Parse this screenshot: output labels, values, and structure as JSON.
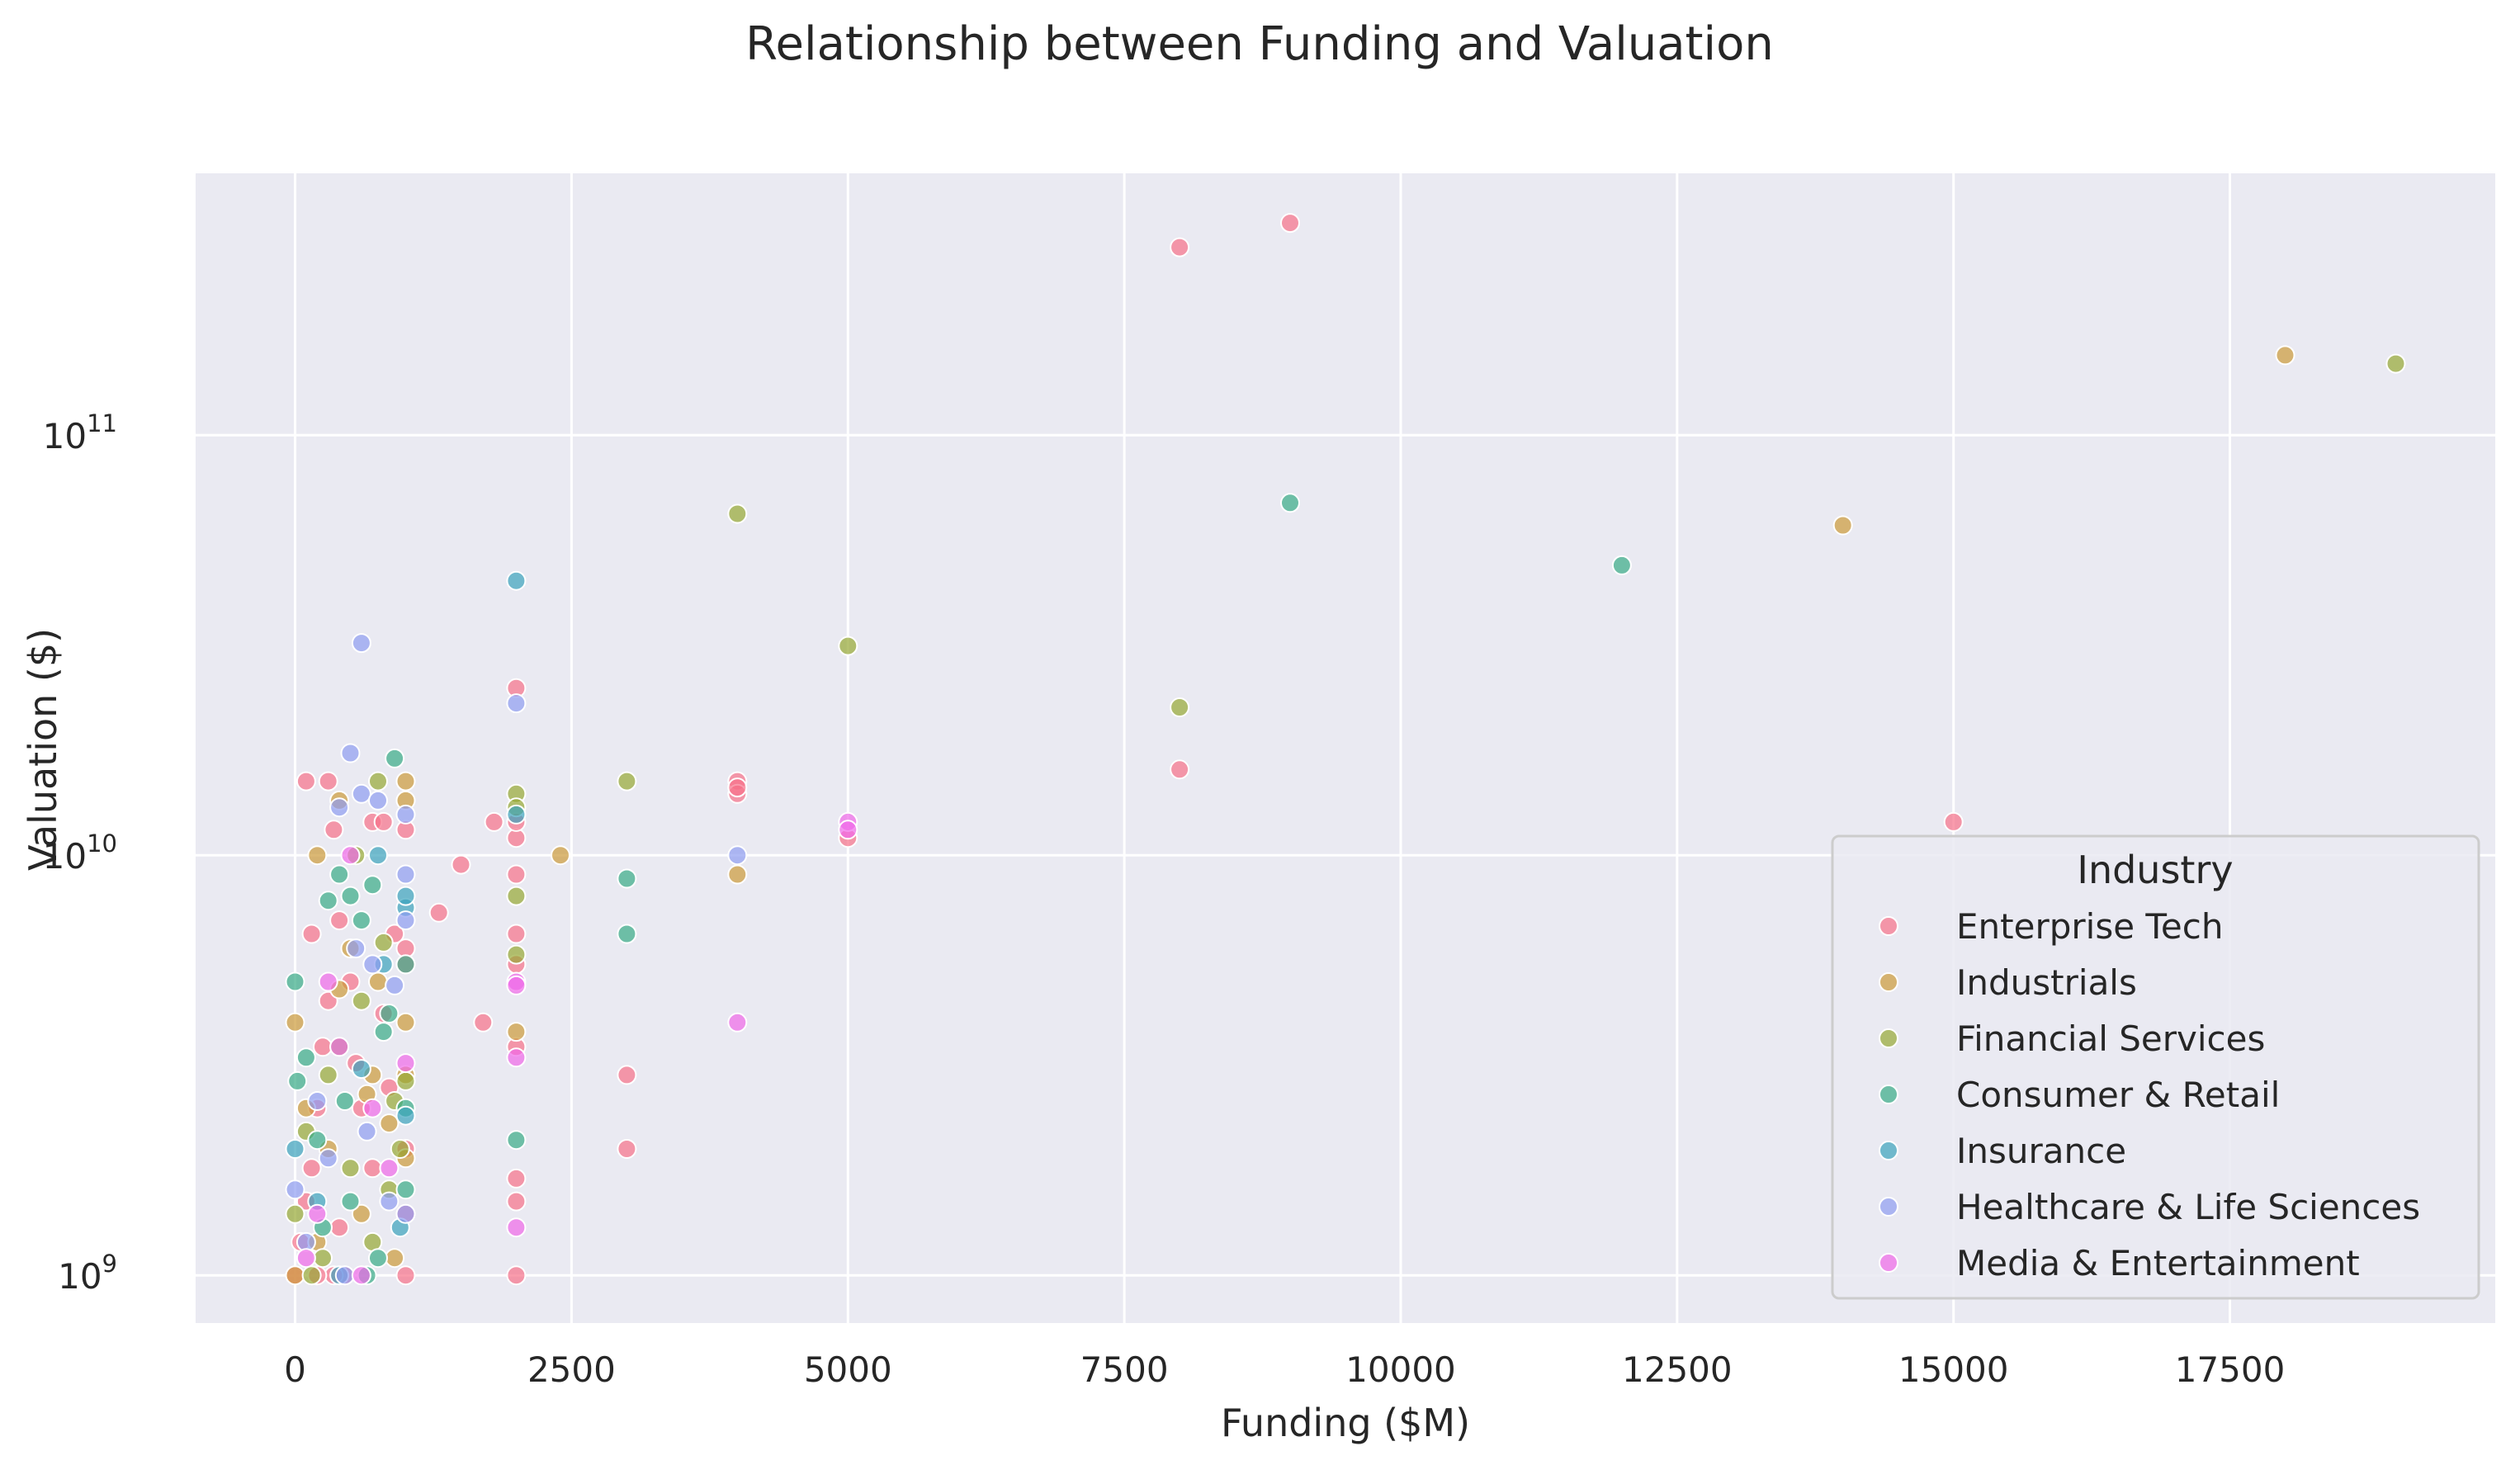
{
  "chart_data": {
    "type": "scatter",
    "title": "Relationship between Funding and Valuation",
    "xlabel": "Funding ($M)",
    "ylabel": "Valuation ($)",
    "xlim": [
      -900,
      19900
    ],
    "ylim": [
      770000000,
      420000000000
    ],
    "x_scale": "linear",
    "y_scale": "log",
    "x_ticks": [
      {
        "value": 0,
        "label": "0"
      },
      {
        "value": 2500,
        "label": "2500"
      },
      {
        "value": 5000,
        "label": "5000"
      },
      {
        "value": 7500,
        "label": "7500"
      },
      {
        "value": 10000,
        "label": "10000"
      },
      {
        "value": 12500,
        "label": "12500"
      },
      {
        "value": 15000,
        "label": "15000"
      },
      {
        "value": 17500,
        "label": "17500"
      }
    ],
    "y_ticks": [
      {
        "value": 1000000000,
        "base": "10",
        "exp": "9"
      },
      {
        "value": 10000000000,
        "base": "10",
        "exp": "10"
      },
      {
        "value": 100000000000,
        "base": "10",
        "exp": "11"
      }
    ],
    "grid": true,
    "plot_background": "#eaeaf2",
    "grid_color": "#ffffff",
    "marker_opacity": 0.7,
    "legend": {
      "title": "Industry",
      "position": "lower-right"
    },
    "series": [
      {
        "name": "Enterprise Tech",
        "color": "#f77189",
        "points": [
          [
            8000,
            280000000000
          ],
          [
            9000,
            320000000000
          ],
          [
            15000,
            12000000000
          ],
          [
            8000,
            16000000000
          ],
          [
            5000,
            11000000000
          ],
          [
            4000,
            15000000000
          ],
          [
            4000,
            14000000000
          ],
          [
            4000,
            14500000000
          ],
          [
            3000,
            2000000000
          ],
          [
            3000,
            3000000000
          ],
          [
            2000,
            25000000000
          ],
          [
            2000,
            11000000000
          ],
          [
            2000,
            12000000000
          ],
          [
            2000,
            9000000000
          ],
          [
            2000,
            6500000000
          ],
          [
            2000,
            5500000000
          ],
          [
            2000,
            3500000000
          ],
          [
            2000,
            1700000000
          ],
          [
            2000,
            1500000000
          ],
          [
            2000,
            1000000000
          ],
          [
            1700,
            4000000000
          ],
          [
            1800,
            12000000000
          ],
          [
            1500,
            9500000000
          ],
          [
            1300,
            7300000000
          ],
          [
            100,
            15000000000
          ],
          [
            300,
            15000000000
          ],
          [
            150,
            6500000000
          ],
          [
            350,
            11500000000
          ],
          [
            700,
            12000000000
          ],
          [
            800,
            12000000000
          ],
          [
            1000,
            11500000000
          ],
          [
            1000,
            6000000000
          ],
          [
            900,
            6500000000
          ],
          [
            1000,
            5500000000
          ],
          [
            1000,
            2000000000
          ],
          [
            1000,
            1400000000
          ],
          [
            1000,
            1000000000
          ],
          [
            500,
            5000000000
          ],
          [
            400,
            7000000000
          ],
          [
            300,
            4500000000
          ],
          [
            200,
            2500000000
          ],
          [
            100,
            1500000000
          ],
          [
            0,
            1000000000
          ],
          [
            50,
            1200000000
          ],
          [
            250,
            3500000000
          ],
          [
            600,
            2500000000
          ],
          [
            700,
            1800000000
          ],
          [
            450,
            1000000000
          ],
          [
            350,
            1000000000
          ],
          [
            200,
            1000000000
          ],
          [
            550,
            3200000000
          ],
          [
            800,
            4200000000
          ],
          [
            850,
            2800000000
          ],
          [
            150,
            1800000000
          ],
          [
            400,
            1300000000
          ]
        ]
      },
      {
        "name": "Industrials",
        "color": "#cc9a39",
        "points": [
          [
            18000,
            155000000000
          ],
          [
            14000,
            61000000000
          ],
          [
            4000,
            9000000000
          ],
          [
            2400,
            10000000000
          ],
          [
            2000,
            3800000000
          ],
          [
            1000,
            15000000000
          ],
          [
            1000,
            13500000000
          ],
          [
            200,
            10000000000
          ],
          [
            400,
            13500000000
          ],
          [
            0,
            4000000000
          ],
          [
            1000,
            4000000000
          ],
          [
            1000,
            1900000000
          ],
          [
            500,
            6000000000
          ],
          [
            100,
            2500000000
          ],
          [
            300,
            2000000000
          ],
          [
            700,
            3000000000
          ],
          [
            850,
            2300000000
          ],
          [
            600,
            1400000000
          ],
          [
            900,
            1100000000
          ],
          [
            200,
            1200000000
          ],
          [
            1000,
            3000000000
          ],
          [
            400,
            4800000000
          ],
          [
            750,
            5000000000
          ],
          [
            0,
            1000000000
          ],
          [
            650,
            2700000000
          ]
        ]
      },
      {
        "name": "Financial Services",
        "color": "#96a833",
        "points": [
          [
            19000,
            148000000000
          ],
          [
            4000,
            65000000000
          ],
          [
            5000,
            31500000000
          ],
          [
            8000,
            22500000000
          ],
          [
            3000,
            15000000000
          ],
          [
            2000,
            14000000000
          ],
          [
            2000,
            13000000000
          ],
          [
            2000,
            8000000000
          ],
          [
            2000,
            5800000000
          ],
          [
            750,
            15000000000
          ],
          [
            550,
            10000000000
          ],
          [
            1000,
            2900000000
          ],
          [
            800,
            6200000000
          ],
          [
            300,
            3000000000
          ],
          [
            100,
            2200000000
          ],
          [
            500,
            1800000000
          ],
          [
            700,
            1200000000
          ],
          [
            900,
            2600000000
          ],
          [
            0,
            1400000000
          ],
          [
            250,
            1100000000
          ],
          [
            600,
            4500000000
          ],
          [
            400,
            3500000000
          ],
          [
            850,
            1600000000
          ],
          [
            150,
            1000000000
          ],
          [
            950,
            2000000000
          ]
        ]
      },
      {
        "name": "Consumer & Retail",
        "color": "#38ab86",
        "points": [
          [
            9000,
            69000000000
          ],
          [
            12000,
            49000000000
          ],
          [
            3000,
            8800000000
          ],
          [
            3000,
            6500000000
          ],
          [
            2000,
            2100000000
          ],
          [
            900,
            17000000000
          ],
          [
            0,
            5000000000
          ],
          [
            20,
            2900000000
          ],
          [
            500,
            8000000000
          ],
          [
            700,
            8500000000
          ],
          [
            300,
            7800000000
          ],
          [
            400,
            9000000000
          ],
          [
            600,
            7000000000
          ],
          [
            1000,
            5500000000
          ],
          [
            1000,
            2500000000
          ],
          [
            800,
            3800000000
          ],
          [
            100,
            3300000000
          ],
          [
            200,
            2100000000
          ],
          [
            500,
            1500000000
          ],
          [
            750,
            1100000000
          ],
          [
            850,
            4200000000
          ],
          [
            1000,
            1600000000
          ],
          [
            250,
            1300000000
          ],
          [
            650,
            1000000000
          ],
          [
            450,
            2600000000
          ]
        ]
      },
      {
        "name": "Insurance",
        "color": "#3ba3bc",
        "points": [
          [
            2000,
            45000000000
          ],
          [
            2000,
            12500000000
          ],
          [
            1000,
            7500000000
          ],
          [
            1000,
            8000000000
          ],
          [
            750,
            10000000000
          ],
          [
            800,
            5500000000
          ],
          [
            0,
            2000000000
          ],
          [
            200,
            1500000000
          ],
          [
            600,
            3100000000
          ],
          [
            950,
            1300000000
          ],
          [
            400,
            1000000000
          ],
          [
            1000,
            2400000000
          ]
        ]
      },
      {
        "name": "Healthcare & Life Sciences",
        "color": "#8e9cf1",
        "points": [
          [
            600,
            32000000000
          ],
          [
            2000,
            23000000000
          ],
          [
            500,
            17500000000
          ],
          [
            600,
            14000000000
          ],
          [
            750,
            13500000000
          ],
          [
            400,
            13000000000
          ],
          [
            1000,
            12500000000
          ],
          [
            4000,
            10000000000
          ],
          [
            1000,
            9000000000
          ],
          [
            1000,
            7000000000
          ],
          [
            550,
            6000000000
          ],
          [
            700,
            5500000000
          ],
          [
            0,
            1600000000
          ],
          [
            300,
            1900000000
          ],
          [
            900,
            4900000000
          ],
          [
            850,
            1500000000
          ],
          [
            1000,
            1400000000
          ],
          [
            200,
            2600000000
          ],
          [
            650,
            2200000000
          ],
          [
            450,
            1000000000
          ],
          [
            100,
            1200000000
          ]
        ]
      },
      {
        "name": "Media & Entertainment",
        "color": "#f068e8",
        "points": [
          [
            5000,
            12000000000
          ],
          [
            5000,
            11500000000
          ],
          [
            4000,
            4000000000
          ],
          [
            2000,
            5000000000
          ],
          [
            2000,
            4900000000
          ],
          [
            2000,
            3300000000
          ],
          [
            2000,
            1300000000
          ],
          [
            500,
            10000000000
          ],
          [
            300,
            5000000000
          ],
          [
            400,
            3500000000
          ],
          [
            700,
            2500000000
          ],
          [
            200,
            1400000000
          ],
          [
            600,
            1000000000
          ],
          [
            850,
            1800000000
          ],
          [
            100,
            1100000000
          ],
          [
            1000,
            3200000000
          ]
        ]
      }
    ]
  }
}
